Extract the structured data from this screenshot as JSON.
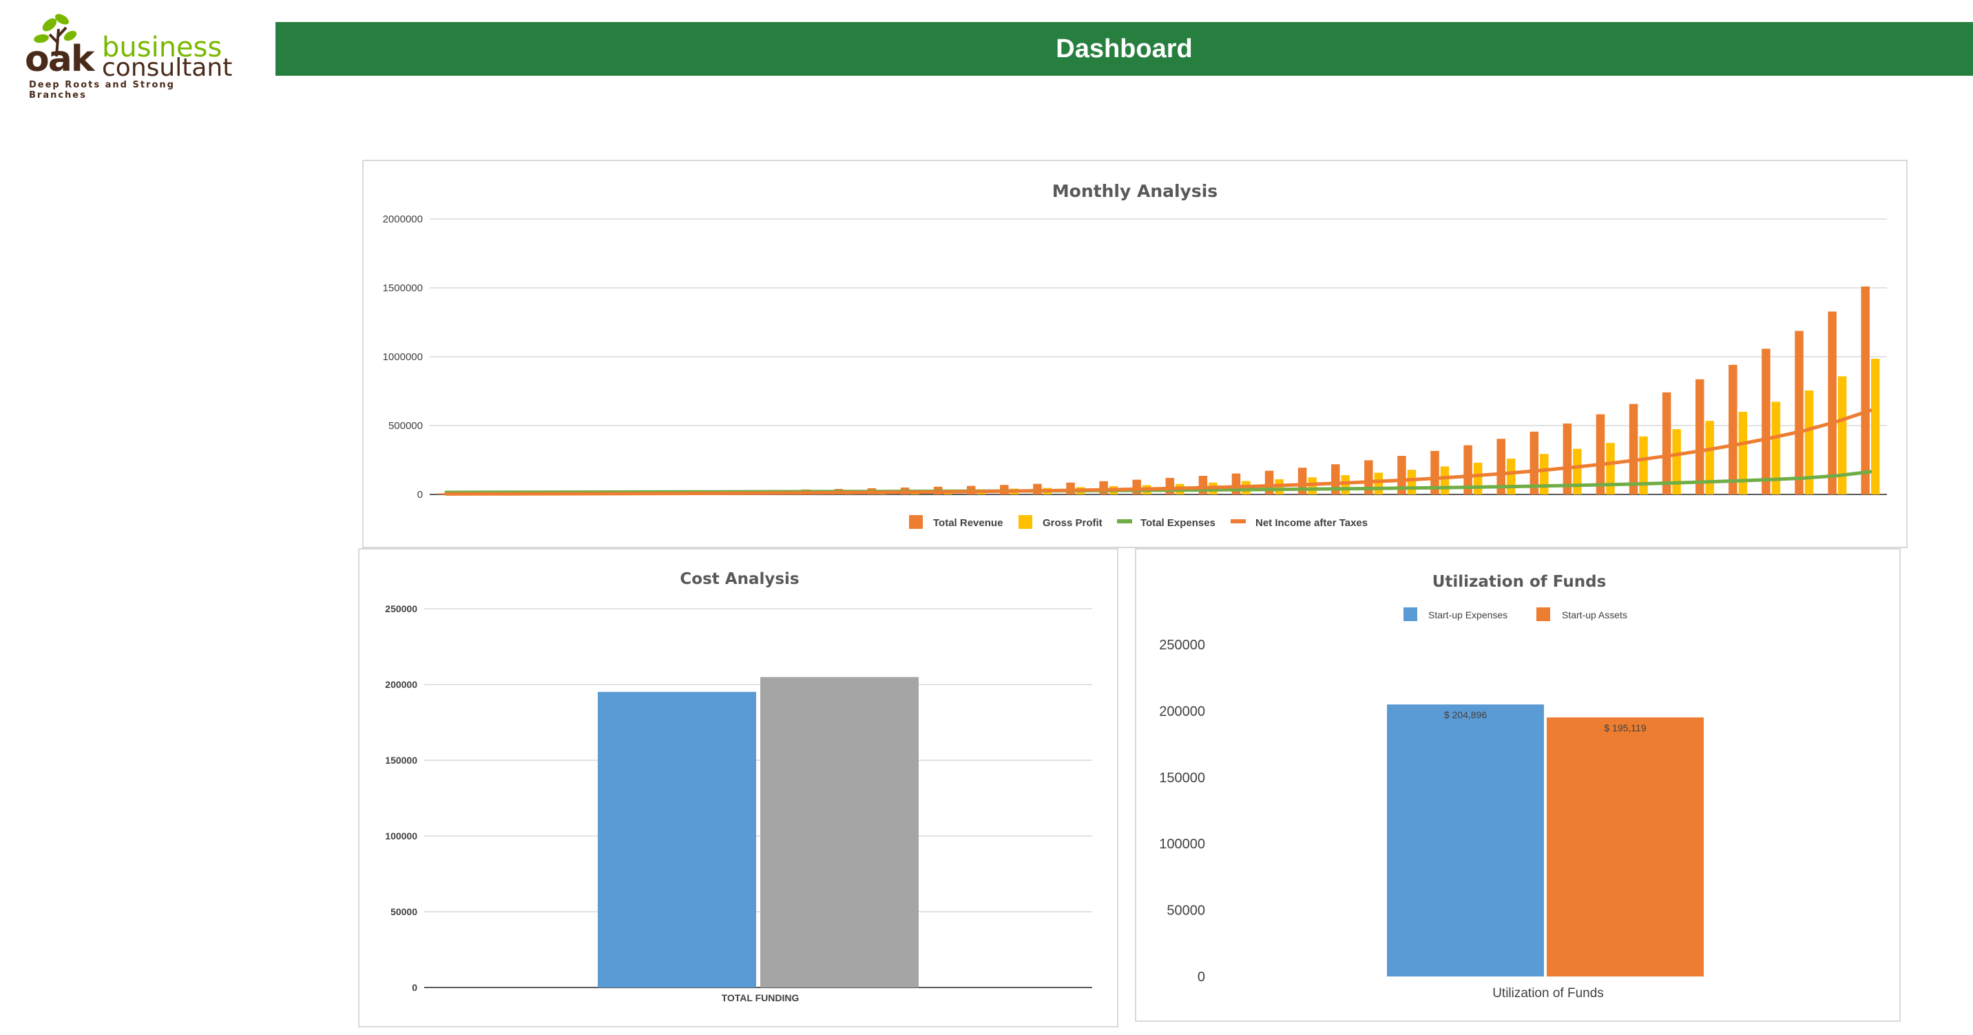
{
  "brand": {
    "logo_word_1": "oak",
    "logo_word_2": "business",
    "logo_word_3": "consultant",
    "tagline": "Deep Roots and Strong Branches",
    "green": "#7ab800",
    "brown": "#4a2b1a"
  },
  "header": {
    "title": "Dashboard",
    "color": "#267f3f"
  },
  "charts": {
    "monthly": {
      "title": "Monthly Analysis",
      "legend": [
        "Total Revenue",
        "Gross Profit",
        "Total Expenses",
        "Net Income after Taxes"
      ]
    },
    "cost": {
      "title": "Cost Analysis",
      "category": "TOTAL FUNDING"
    },
    "funds": {
      "title": "Utilization of Funds",
      "legend": [
        "Start-up Expenses",
        "Start-up Assets"
      ],
      "category": "Utilization of Funds",
      "labels": [
        "$ 204,896",
        "$ 195,119"
      ]
    }
  },
  "chart_data": [
    {
      "type": "bar",
      "title": "Monthly Analysis",
      "ylim": [
        0,
        2000000
      ],
      "yticks": [
        0,
        500000,
        1000000,
        1500000,
        2000000
      ],
      "grid": true,
      "legend_position": "bottom",
      "series": [
        {
          "name": "Total Revenue",
          "kind": "bar",
          "color": "#ed7d31",
          "values": [
            8000,
            10000,
            12000,
            14000,
            16000,
            18000,
            20000,
            23000,
            26000,
            29000,
            32000,
            36000,
            40000,
            45000,
            50000,
            56000,
            62000,
            69000,
            77000,
            86000,
            96000,
            107000,
            120000,
            135000,
            152000,
            172000,
            194000,
            219000,
            248000,
            280000,
            316000,
            357000,
            404000,
            456000,
            515000,
            582000,
            657000,
            741000,
            836000,
            941000,
            1058000,
            1187000,
            1328000,
            1510000
          ]
        },
        {
          "name": "Gross Profit",
          "kind": "bar",
          "color": "#ffc000",
          "values": [
            5000,
            6000,
            7000,
            8000,
            9000,
            10000,
            11000,
            13000,
            15000,
            17000,
            19000,
            21000,
            24000,
            27000,
            30000,
            33000,
            37000,
            42000,
            47000,
            53000,
            60000,
            67000,
            76000,
            86000,
            97000,
            110000,
            124000,
            140000,
            158000,
            179000,
            203000,
            230000,
            260000,
            294000,
            331000,
            374000,
            421000,
            474000,
            534000,
            600000,
            673000,
            755000,
            858000,
            985000
          ]
        },
        {
          "name": "Total Expenses",
          "kind": "line",
          "color": "#70ad47",
          "values": [
            15000,
            15500,
            16000,
            16500,
            17000,
            17500,
            18000,
            18500,
            19000,
            19500,
            20000,
            20500,
            21000,
            21700,
            22400,
            23200,
            24000,
            25000,
            26000,
            27100,
            28300,
            29600,
            31000,
            32600,
            34300,
            36200,
            38300,
            40600,
            43100,
            46000,
            49000,
            52500,
            56300,
            60600,
            65300,
            70500,
            76400,
            83000,
            90400,
            98700,
            108000,
            118400,
            136000,
            165000
          ]
        },
        {
          "name": "Net Income after Taxes",
          "kind": "line",
          "color": "#ed7d31",
          "values": [
            3000,
            3500,
            4000,
            4500,
            5000,
            5500,
            6000,
            7000,
            8000,
            9000,
            10000,
            11500,
            13000,
            14500,
            16500,
            18500,
            21000,
            24000,
            27000,
            30500,
            34500,
            39000,
            44000,
            50000,
            56500,
            64000,
            72500,
            82000,
            93000,
            105000,
            119000,
            135000,
            153000,
            173000,
            196000,
            222000,
            251000,
            284000,
            321000,
            363000,
            410000,
            463000,
            530000,
            610000
          ]
        }
      ]
    },
    {
      "type": "bar",
      "title": "Cost Analysis",
      "categories": [
        "TOTAL FUNDING"
      ],
      "ylim": [
        0,
        250000
      ],
      "yticks": [
        0,
        50000,
        100000,
        150000,
        200000,
        250000
      ],
      "grid": true,
      "series": [
        {
          "color": "#5b9bd5",
          "values": [
            195119
          ]
        },
        {
          "color": "#a5a5a5",
          "values": [
            204896
          ]
        }
      ]
    },
    {
      "type": "bar",
      "title": "Utilization of Funds",
      "categories": [
        "Utilization of Funds"
      ],
      "ylim": [
        0,
        250000
      ],
      "yticks": [
        0,
        50000,
        100000,
        150000,
        200000,
        250000
      ],
      "grid": false,
      "legend_position": "top",
      "series": [
        {
          "name": "Start-up Expenses",
          "color": "#5b9bd5",
          "values": [
            204896
          ]
        },
        {
          "name": "Start-up Assets",
          "color": "#ed7d31",
          "values": [
            195119
          ]
        }
      ]
    }
  ]
}
